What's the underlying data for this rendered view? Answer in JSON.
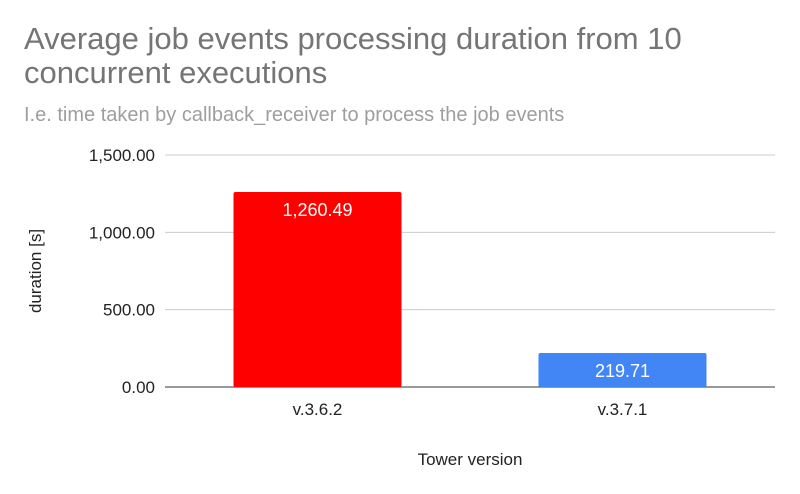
{
  "chart_data": {
    "type": "bar",
    "title": "Average job events processing duration from 10 concurrent executions",
    "subtitle": "I.e. time taken by callback_receiver to process the job events",
    "xlabel": "Tower version",
    "ylabel": "duration [s]",
    "categories": [
      "v.3.6.2",
      "v.3.7.1"
    ],
    "values": [
      1260.49,
      219.71
    ],
    "data_labels": [
      "1,260.49",
      "219.71"
    ],
    "bar_colors": [
      "#ff0000",
      "#4285f4"
    ],
    "ylim": [
      0,
      1500
    ],
    "yticks": [
      0,
      500,
      1000,
      1500
    ],
    "ytick_labels": [
      "0.00",
      "500.00",
      "1,000.00",
      "1,500.00"
    ],
    "grid": true,
    "legend": "none"
  }
}
